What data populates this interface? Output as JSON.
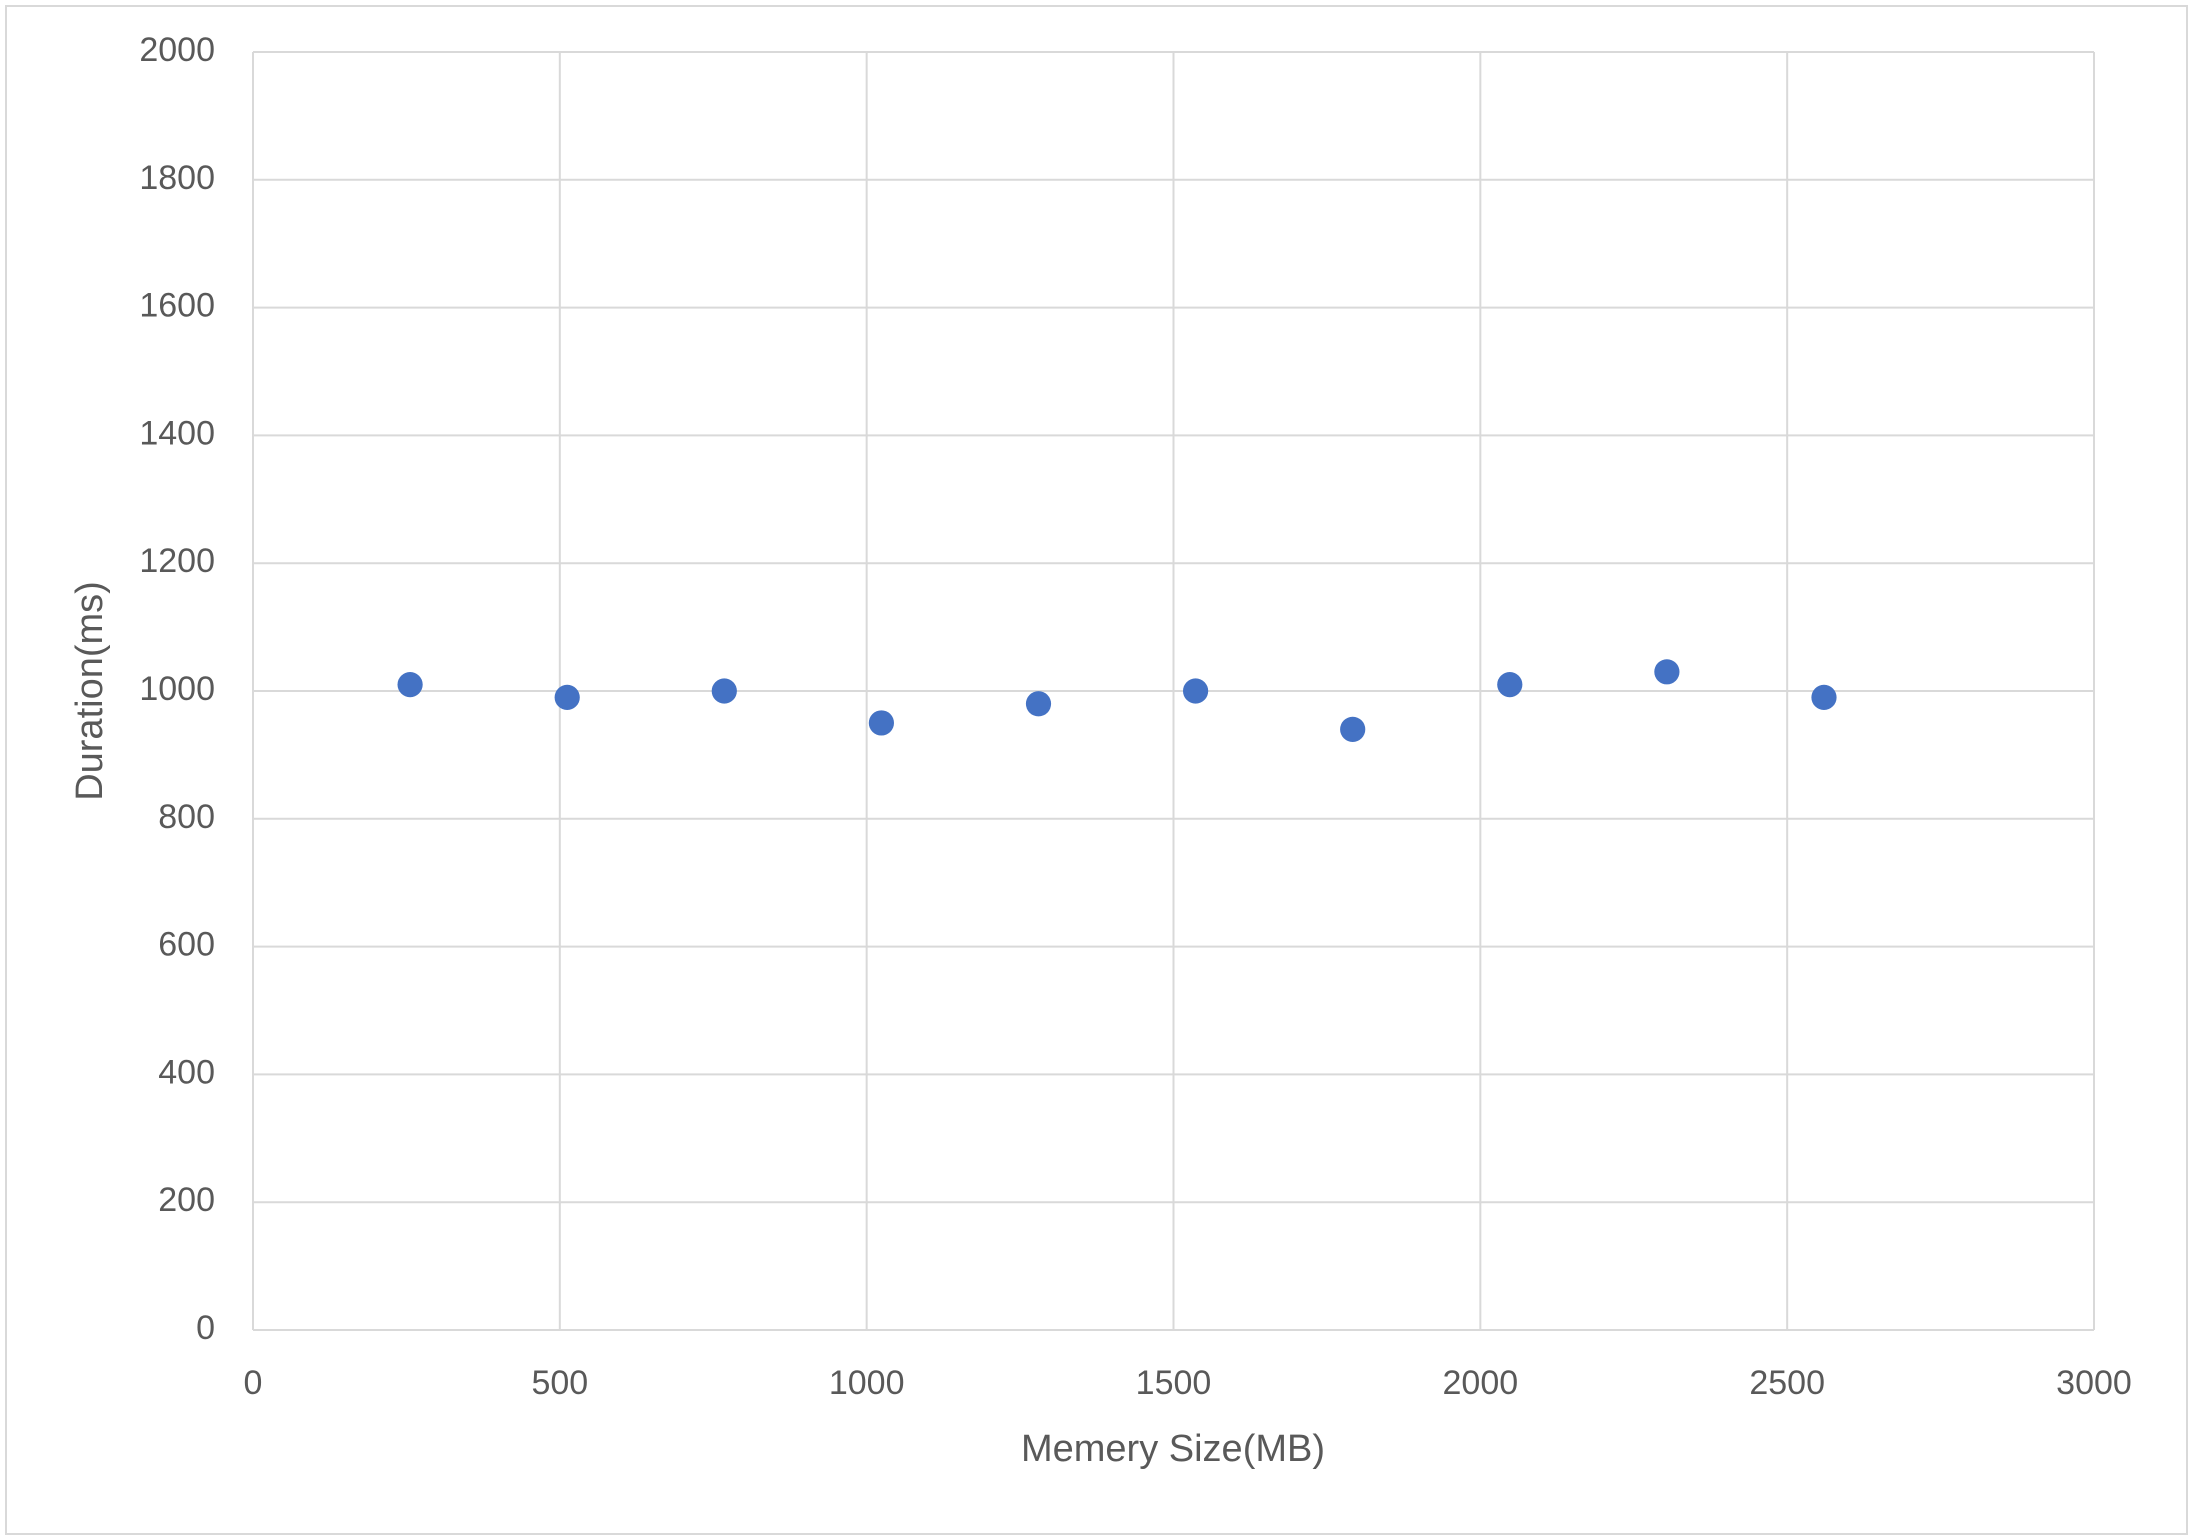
{
  "chart_data": {
    "type": "scatter",
    "x_label": "Memery Size(MB)",
    "y_label": "Duration(ms)",
    "x": [
      256,
      512,
      768,
      1024,
      1280,
      1536,
      1792,
      2048,
      2304,
      2560
    ],
    "values": [
      1010,
      990,
      1000,
      950,
      980,
      1000,
      940,
      1010,
      1030,
      990
    ],
    "color": "#4472c4",
    "xlim": [
      0,
      3000
    ],
    "xticks": [
      0,
      500,
      1000,
      1500,
      2000,
      2500,
      3000
    ],
    "ylim": [
      0,
      2000
    ],
    "yticks": [
      0,
      200,
      400,
      600,
      800,
      1000,
      1200,
      1400,
      1600,
      1800,
      2000
    ],
    "grid": true
  }
}
